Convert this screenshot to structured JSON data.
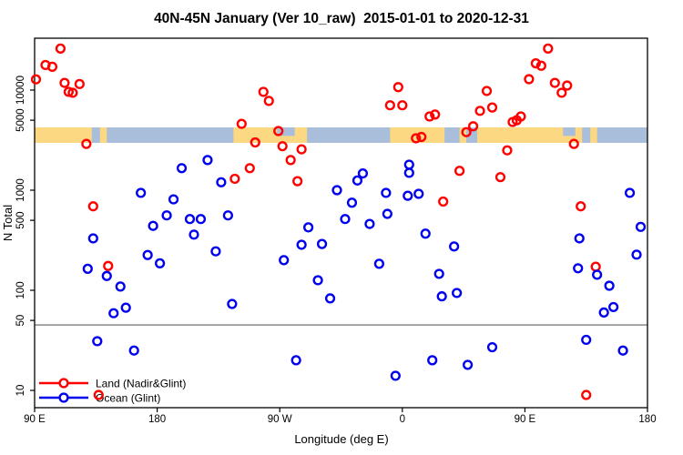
{
  "title": "40N-45N January (Ver 10_raw)  2015-01-01 to 2020-12-31",
  "legend": {
    "items": [
      {
        "label": "Land (Nadir&Glint)",
        "color": "#ff0000"
      },
      {
        "label": "Ocean (Glint)",
        "color": "#0000ee"
      }
    ]
  },
  "colors": {
    "land_series": "#ff0000",
    "ocean_series": "#0000ee",
    "strip_land": "#fcd883",
    "strip_ocean": "#a8bedb",
    "reference_line": "#999999",
    "frame": "#000000"
  },
  "chart_data": {
    "type": "scatter",
    "title": "40N-45N January (Ver 10_raw)  2015-01-01 to 2020-12-31",
    "xlabel": "Longitude (deg E)",
    "ylabel": "N Total",
    "x_axis": {
      "note": "longitude axis wraps eastward starting at 90E; positions are deg east of 0 continuing past 360",
      "min": 90,
      "max": 540,
      "ticks": [
        {
          "deg": 90,
          "label": "90 E"
        },
        {
          "deg": 180,
          "label": "180"
        },
        {
          "deg": 270,
          "label": "90 W"
        },
        {
          "deg": 360,
          "label": "0"
        },
        {
          "deg": 450,
          "label": "90 E"
        },
        {
          "deg": 540,
          "label": "180"
        }
      ]
    },
    "y_axis": {
      "scale": "log",
      "min": 8,
      "max": 33000,
      "ticks": [
        {
          "value": 10,
          "label": "10"
        },
        {
          "value": 50,
          "label": "50"
        },
        {
          "value": 100,
          "label": "100"
        },
        {
          "value": 500,
          "label": "500"
        },
        {
          "value": 1000,
          "label": "1000"
        },
        {
          "value": 5000,
          "label": "5000"
        },
        {
          "value": 10000,
          "label": "10000"
        }
      ]
    },
    "reference_line": {
      "value": 45
    },
    "land_ocean_strip": {
      "value_band": [
        3100,
        4400
      ],
      "land_color": "#fcd883",
      "ocean_color": "#a8bedb",
      "land_segments_deg": [
        [
          90,
          132
        ],
        [
          138,
          143
        ],
        [
          236,
          290
        ],
        [
          351,
          391
        ],
        [
          402,
          407
        ],
        [
          415,
          492
        ],
        [
          498,
          503
        ]
      ],
      "lake_patches_deg": [
        [
          268,
          281
        ],
        [
          478,
          487
        ]
      ]
    },
    "series": [
      {
        "name": "Land (Nadir&Glint)",
        "color": "#ff0000",
        "points": [
          [
            109,
            26000
          ],
          [
            98,
            17800
          ],
          [
            103,
            17100
          ],
          [
            91,
            12800
          ],
          [
            112,
            11800
          ],
          [
            123,
            11500
          ],
          [
            115,
            9600
          ],
          [
            118,
            9400
          ],
          [
            128,
            2900
          ],
          [
            133,
            690
          ],
          [
            144,
            175
          ],
          [
            137,
            9
          ],
          [
            258,
            9600
          ],
          [
            262,
            7800
          ],
          [
            242,
            4600
          ],
          [
            269,
            3900
          ],
          [
            252,
            3000
          ],
          [
            272,
            2750
          ],
          [
            286,
            2560
          ],
          [
            278,
            2000
          ],
          [
            248,
            1660
          ],
          [
            237,
            1300
          ],
          [
            283,
            1230
          ],
          [
            357,
            10700
          ],
          [
            351,
            7050
          ],
          [
            360,
            7050
          ],
          [
            384,
            5700
          ],
          [
            380,
            5450
          ],
          [
            374,
            3400
          ],
          [
            370,
            3300
          ],
          [
            390,
            770
          ],
          [
            422,
            9800
          ],
          [
            426,
            6700
          ],
          [
            417,
            6200
          ],
          [
            447,
            5450
          ],
          [
            444,
            5000
          ],
          [
            441,
            4800
          ],
          [
            412,
            4350
          ],
          [
            407,
            3800
          ],
          [
            467,
            26000
          ],
          [
            458,
            18500
          ],
          [
            462,
            17500
          ],
          [
            453,
            12850
          ],
          [
            472,
            11800
          ],
          [
            481,
            11100
          ],
          [
            477,
            9400
          ],
          [
            486,
            2900
          ],
          [
            437,
            2500
          ],
          [
            402,
            1560
          ],
          [
            432,
            1350
          ],
          [
            491,
            690
          ],
          [
            502,
            172
          ],
          [
            495,
            9
          ]
        ]
      },
      {
        "name": "Ocean (Glint)",
        "color": "#0000ee",
        "points": [
          [
            217,
            2000
          ],
          [
            198,
            1660
          ],
          [
            227,
            1200
          ],
          [
            168,
            940
          ],
          [
            192,
            810
          ],
          [
            187,
            560
          ],
          [
            204,
            515
          ],
          [
            212,
            515
          ],
          [
            232,
            560
          ],
          [
            177,
            440
          ],
          [
            133,
            330
          ],
          [
            207,
            360
          ],
          [
            173,
            225
          ],
          [
            182,
            186
          ],
          [
            129,
            164
          ],
          [
            143,
            139
          ],
          [
            153,
            109
          ],
          [
            223,
            245
          ],
          [
            235,
            73
          ],
          [
            148,
            59
          ],
          [
            157,
            67
          ],
          [
            136,
            31
          ],
          [
            163,
            25
          ],
          [
            365,
            1800
          ],
          [
            365,
            1490
          ],
          [
            331,
            1470
          ],
          [
            327,
            1250
          ],
          [
            312,
            1000
          ],
          [
            348,
            940
          ],
          [
            364,
            880
          ],
          [
            372,
            920
          ],
          [
            323,
            750
          ],
          [
            318,
            515
          ],
          [
            349,
            580
          ],
          [
            336,
            460
          ],
          [
            291,
            425
          ],
          [
            286,
            285
          ],
          [
            301,
            290
          ],
          [
            273,
            200
          ],
          [
            343,
            184
          ],
          [
            377,
            368
          ],
          [
            298,
            126
          ],
          [
            307,
            83
          ],
          [
            387,
            146
          ],
          [
            389,
            87
          ],
          [
            282,
            20
          ],
          [
            355,
            14
          ],
          [
            382,
            20
          ],
          [
            398,
            274
          ],
          [
            490,
            330
          ],
          [
            535,
            430
          ],
          [
            532,
            227
          ],
          [
            489,
            166
          ],
          [
            503,
            143
          ],
          [
            512,
            111
          ],
          [
            400,
            94
          ],
          [
            508,
            60
          ],
          [
            515,
            68
          ],
          [
            495,
            32
          ],
          [
            522,
            25
          ],
          [
            426,
            27
          ],
          [
            408,
            18
          ],
          [
            527,
            940
          ]
        ]
      }
    ]
  }
}
